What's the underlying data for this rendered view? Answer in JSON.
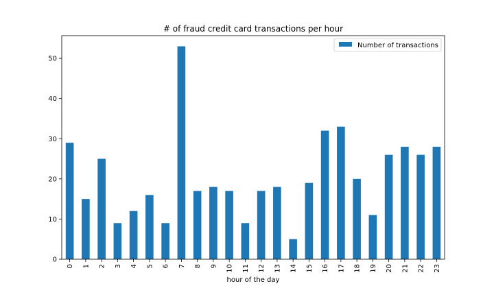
{
  "chart_data": {
    "type": "bar",
    "title": "# of fraud credit card transactions per hour",
    "xlabel": "hour of the day",
    "ylabel": "",
    "categories": [
      "0",
      "1",
      "2",
      "3",
      "4",
      "5",
      "6",
      "7",
      "8",
      "9",
      "10",
      "11",
      "12",
      "13",
      "14",
      "15",
      "16",
      "17",
      "18",
      "19",
      "20",
      "21",
      "22",
      "23"
    ],
    "series": [
      {
        "name": "Number of transactions",
        "color": "#1f77b4",
        "values": [
          29,
          15,
          25,
          9,
          12,
          16,
          9,
          53,
          17,
          18,
          17,
          9,
          17,
          18,
          5,
          19,
          32,
          33,
          20,
          11,
          26,
          28,
          26,
          28
        ]
      }
    ],
    "ylim": [
      0,
      55.65
    ],
    "yticks": [
      0,
      10,
      20,
      30,
      40,
      50
    ],
    "legend_position": "upper right",
    "grid": false
  }
}
